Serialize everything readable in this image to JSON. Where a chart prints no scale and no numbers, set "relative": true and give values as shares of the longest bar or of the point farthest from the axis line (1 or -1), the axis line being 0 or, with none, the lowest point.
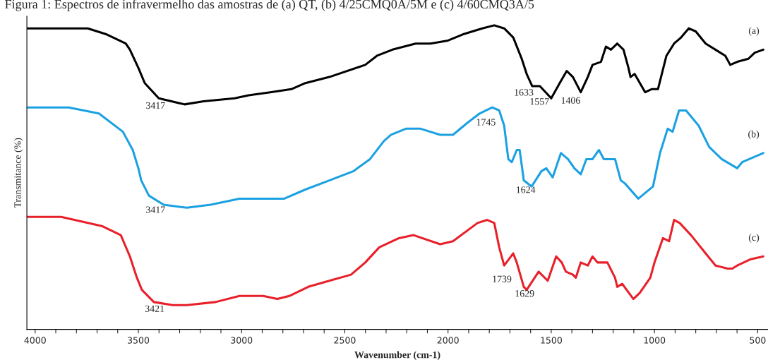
{
  "chart_data": {
    "type": "line",
    "relative": true,
    "title": "Figura 1: Espectros de infravermelho das amostras de (a) QT, (b) 4/25CMQ0A/5M e (c) 4/60CMQ3A/5",
    "xlabel": "Wavenumber (cm-1)",
    "ylabel": "Transmitance (%)",
    "xlim": [
      4040,
      450
    ],
    "xticks": [
      4000,
      {
        "value": 3900,
        "label": null
      },
      {
        "value": 3800,
        "label": null
      },
      {
        "value": 3700,
        "label": null
      },
      {
        "value": 3600,
        "label": null
      },
      3500,
      {
        "value": 3400,
        "label": null
      },
      {
        "value": 3300,
        "label": null
      },
      {
        "value": 3200,
        "label": null
      },
      {
        "value": 3100,
        "label": null
      },
      3000,
      {
        "value": 2900,
        "label": null
      },
      {
        "value": 2800,
        "label": null
      },
      {
        "value": 2700,
        "label": null
      },
      {
        "value": 2600,
        "label": null
      },
      2500,
      {
        "value": 2400,
        "label": null
      },
      {
        "value": 2300,
        "label": null
      },
      {
        "value": 2200,
        "label": null
      },
      {
        "value": 2100,
        "label": null
      },
      2000,
      {
        "value": 1900,
        "label": null
      },
      {
        "value": 1800,
        "label": null
      },
      {
        "value": 1700,
        "label": null
      },
      {
        "value": 1600,
        "label": null
      },
      1500,
      {
        "value": 1400,
        "label": null
      },
      {
        "value": 1300,
        "label": null
      },
      {
        "value": 1200,
        "label": null
      },
      {
        "value": 1100,
        "label": null
      },
      1000,
      {
        "value": 900,
        "label": null
      },
      {
        "value": 800,
        "label": null
      },
      {
        "value": 700,
        "label": null
      },
      {
        "value": 600,
        "label": null
      },
      500
    ],
    "tick_labels": "x",
    "grid": false,
    "legend": false,
    "series": [
      {
        "name": "(a)",
        "color": "#000000",
        "x": [
          4040,
          3745,
          3653,
          3561,
          3541,
          3500,
          3469,
          3401,
          3276,
          3184,
          3034,
          2966,
          2861,
          2759,
          2691,
          2575,
          2401,
          2344,
          2269,
          2157,
          2085,
          2000,
          1929,
          1834,
          1776,
          1728,
          1684,
          1643,
          1619,
          1592,
          1555,
          1500,
          1459,
          1425,
          1395,
          1357,
          1323,
          1300,
          1259,
          1235,
          1211,
          1180,
          1150,
          1126,
          1116,
          1096,
          1045,
          1014,
          983,
          942,
          905,
          871,
          834,
          800,
          752,
          657,
          633,
          599,
          545,
          514,
          473
        ],
        "values": [
          0.99,
          0.99,
          0.97,
          0.94,
          0.92,
          0.86,
          0.81,
          0.76,
          0.74,
          0.75,
          0.76,
          0.77,
          0.78,
          0.79,
          0.81,
          0.83,
          0.87,
          0.9,
          0.92,
          0.94,
          0.94,
          0.95,
          0.97,
          0.99,
          1.0,
          0.99,
          0.96,
          0.89,
          0.84,
          0.8,
          0.8,
          0.76,
          0.81,
          0.85,
          0.83,
          0.78,
          0.83,
          0.87,
          0.88,
          0.93,
          0.92,
          0.94,
          0.92,
          0.86,
          0.83,
          0.84,
          0.78,
          0.79,
          0.79,
          0.9,
          0.94,
          0.96,
          0.99,
          0.98,
          0.94,
          0.9,
          0.87,
          0.88,
          0.89,
          0.91,
          0.92
        ]
      },
      {
        "name": "(b)",
        "color": "#1ba1e2",
        "x": [
          4040,
          3837,
          3691,
          3575,
          3527,
          3500,
          3486,
          3449,
          3378,
          3265,
          3150,
          3010,
          2918,
          2793,
          2691,
          2575,
          2459,
          2378,
          2310,
          2276,
          2204,
          2133,
          2038,
          1976,
          1905,
          1847,
          1786,
          1752,
          1728,
          1708,
          1691,
          1667,
          1653,
          1633,
          1595,
          1548,
          1524,
          1493,
          1453,
          1419,
          1388,
          1357,
          1330,
          1300,
          1269,
          1245,
          1191,
          1163,
          1143,
          1078,
          1007,
          973,
          936,
          912,
          881,
          847,
          786,
          735,
          674,
          599,
          575,
          473
        ],
        "values": [
          0.73,
          0.73,
          0.71,
          0.65,
          0.59,
          0.53,
          0.49,
          0.44,
          0.41,
          0.4,
          0.41,
          0.43,
          0.43,
          0.43,
          0.46,
          0.49,
          0.52,
          0.56,
          0.62,
          0.64,
          0.66,
          0.66,
          0.64,
          0.64,
          0.68,
          0.71,
          0.73,
          0.72,
          0.67,
          0.56,
          0.55,
          0.59,
          0.59,
          0.49,
          0.47,
          0.52,
          0.53,
          0.5,
          0.58,
          0.56,
          0.53,
          0.51,
          0.56,
          0.56,
          0.59,
          0.56,
          0.56,
          0.49,
          0.48,
          0.43,
          0.47,
          0.58,
          0.66,
          0.65,
          0.72,
          0.72,
          0.67,
          0.6,
          0.56,
          0.53,
          0.55,
          0.58
        ]
      },
      {
        "name": "(c)",
        "color": "#e8202a",
        "x": [
          4040,
          3874,
          3677,
          3585,
          3541,
          3507,
          3483,
          3425,
          3333,
          3265,
          3126,
          3010,
          2895,
          2827,
          2769,
          2677,
          2575,
          2470,
          2401,
          2333,
          2238,
          2167,
          2038,
          1976,
          1857,
          1810,
          1776,
          1752,
          1728,
          1684,
          1667,
          1633,
          1619,
          1561,
          1517,
          1476,
          1449,
          1429,
          1395,
          1381,
          1357,
          1323,
          1300,
          1276,
          1228,
          1191,
          1180,
          1156,
          1102,
          1071,
          1020,
          1000,
          959,
          929,
          905,
          878,
          823,
          752,
          704,
          646,
          623,
          599,
          537,
          473
        ],
        "values": [
          0.37,
          0.37,
          0.34,
          0.31,
          0.24,
          0.17,
          0.13,
          0.09,
          0.08,
          0.08,
          0.09,
          0.11,
          0.11,
          0.1,
          0.11,
          0.14,
          0.16,
          0.18,
          0.22,
          0.27,
          0.3,
          0.31,
          0.28,
          0.29,
          0.35,
          0.36,
          0.35,
          0.27,
          0.21,
          0.25,
          0.22,
          0.14,
          0.13,
          0.19,
          0.16,
          0.24,
          0.22,
          0.19,
          0.18,
          0.17,
          0.22,
          0.21,
          0.24,
          0.22,
          0.22,
          0.17,
          0.14,
          0.15,
          0.1,
          0.12,
          0.17,
          0.22,
          0.3,
          0.29,
          0.36,
          0.35,
          0.31,
          0.25,
          0.21,
          0.2,
          0.2,
          0.21,
          0.23,
          0.24
        ]
      }
    ],
    "annotations": [
      {
        "text": "3417",
        "x": 3417,
        "y": 0.76
      },
      {
        "text": "1633",
        "x": 1633,
        "y": 0.87
      },
      {
        "text": "1557",
        "x": 1557,
        "y": 0.8
      },
      {
        "text": "1406",
        "x": 1406,
        "y": 0.84
      },
      {
        "text": "3417",
        "x": 3417,
        "y": 0.42
      },
      {
        "text": "1745",
        "x": 1745,
        "y": 0.7
      },
      {
        "text": "1624",
        "x": 1624,
        "y": 0.48
      },
      {
        "text": "3421",
        "x": 3421,
        "y": 0.09
      },
      {
        "text": "1739",
        "x": 1739,
        "y": 0.24
      },
      {
        "text": "1629",
        "x": 1629,
        "y": 0.14
      }
    ]
  }
}
